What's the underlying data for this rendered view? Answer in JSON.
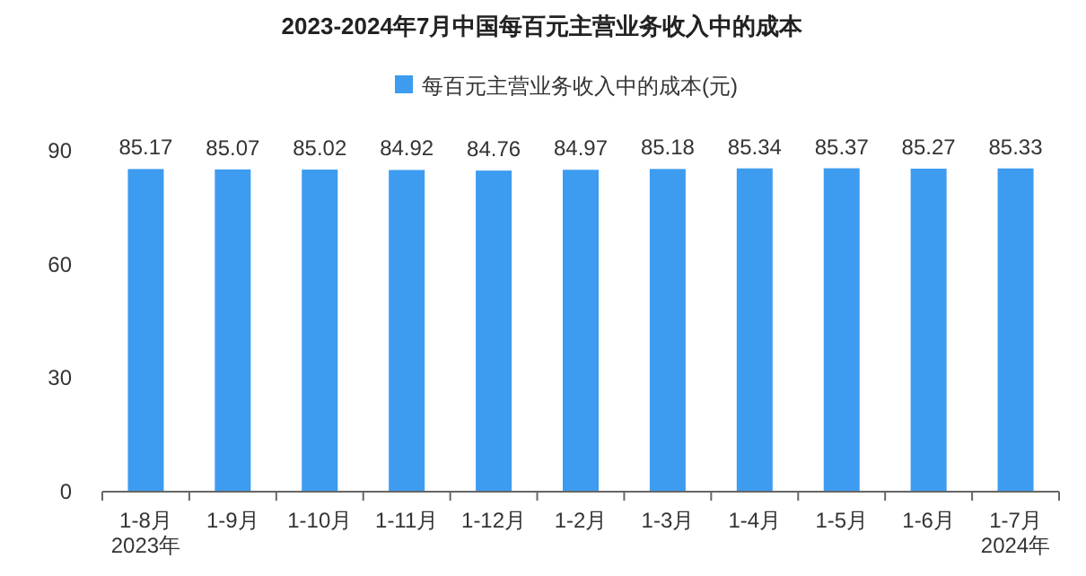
{
  "chart_data": {
    "type": "bar",
    "title": "2023-2024年7月中国每百元主营业务收入中的成本",
    "categories": [
      "1-8月\n2023年",
      "1-9月",
      "1-10月",
      "1-11月",
      "1-12月",
      "1-2月",
      "1-3月",
      "1-4月",
      "1-5月",
      "1-6月",
      "1-7月\n2024年"
    ],
    "series": [
      {
        "name": "每百元主营业务收入中的成本(元)",
        "color": "#3d9cf0",
        "values": [
          85.17,
          85.07,
          85.02,
          84.92,
          84.76,
          84.97,
          85.18,
          85.34,
          85.37,
          85.27,
          85.33
        ]
      }
    ],
    "ylim": [
      0,
      90
    ],
    "yticks": [
      0,
      30,
      60,
      90
    ],
    "data_labels": true,
    "legend": "top",
    "grid": false
  }
}
